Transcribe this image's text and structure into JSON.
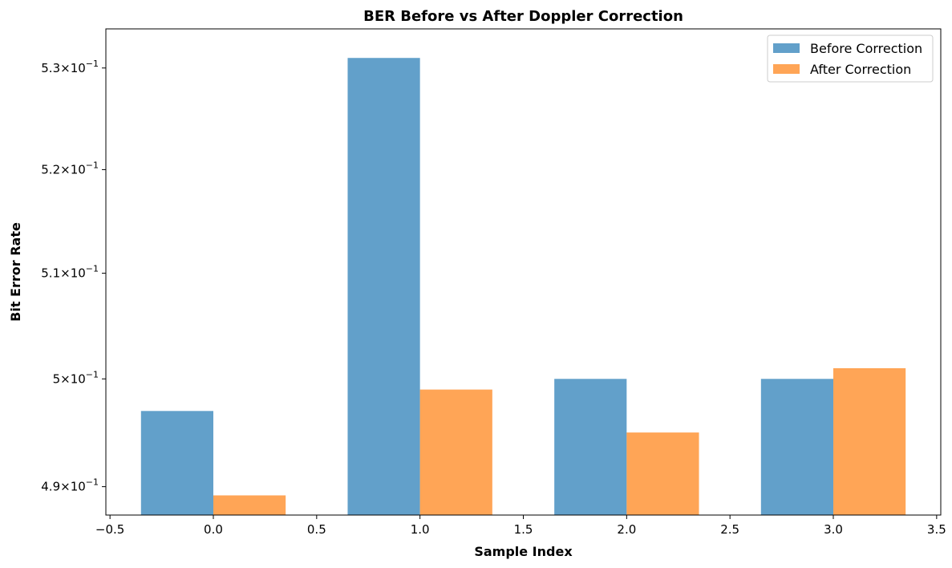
{
  "chart_data": {
    "type": "bar",
    "title": "BER Before vs After Doppler Correction",
    "xlabel": "Sample Index",
    "ylabel": "Bit Error Rate",
    "x": [
      0,
      1,
      2,
      3
    ],
    "bar_width": 0.35,
    "series": [
      {
        "name": "Before Correction",
        "color": "#1f77b4",
        "opacity": 0.7,
        "values": [
          0.497,
          0.531,
          0.5,
          0.5
        ]
      },
      {
        "name": "After Correction",
        "color": "#ff7f0e",
        "opacity": 0.7,
        "values": [
          0.4892,
          0.499,
          0.495,
          0.501
        ]
      }
    ],
    "xlim": [
      -0.52,
      3.52
    ],
    "ylim": [
      0.4874,
      0.5339
    ],
    "yscale": "log",
    "xticks": [
      -0.5,
      0.0,
      0.5,
      1.0,
      1.5,
      2.0,
      2.5,
      3.0,
      3.5
    ],
    "xtick_labels": [
      "−0.5",
      "0.0",
      "0.5",
      "1.0",
      "1.5",
      "2.0",
      "2.5",
      "3.0",
      "3.5"
    ],
    "yticks": [
      0.49,
      0.5,
      0.51,
      0.52,
      0.53
    ],
    "ytick_labels": [
      {
        "mantissa": "4.9",
        "times": "×",
        "base": "10",
        "exp": "−1"
      },
      {
        "mantissa": "5",
        "times": "×",
        "base": "10",
        "exp": "−1"
      },
      {
        "mantissa": "5.1",
        "times": "×",
        "base": "10",
        "exp": "−1"
      },
      {
        "mantissa": "5.2",
        "times": "×",
        "base": "10",
        "exp": "−1"
      },
      {
        "mantissa": "5.3",
        "times": "×",
        "base": "10",
        "exp": "−1"
      }
    ],
    "grid": false,
    "legend_position": "top-right"
  }
}
